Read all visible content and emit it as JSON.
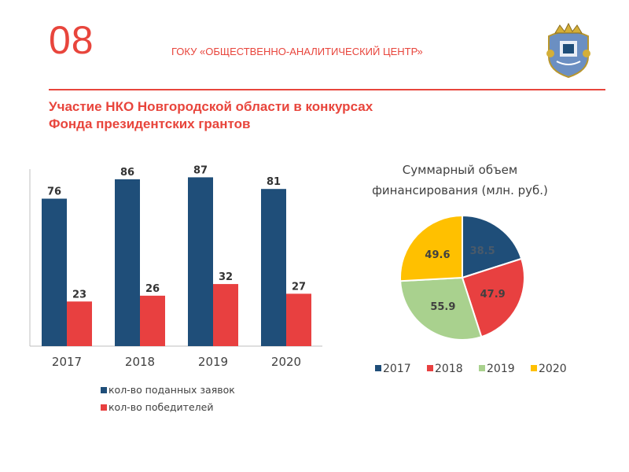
{
  "header": {
    "slide_number": "08",
    "organization": "ГОКУ «ОБЩЕСТВЕННО-АНАЛИТИЧЕСКИЙ ЦЕНТР»",
    "title_line1": "Участие НКО Новгородской области в конкурсах",
    "title_line2": "Фонда президентских грантов"
  },
  "colors": {
    "accent": "#e8453c",
    "navy": "#1f4e79",
    "red": "#e84040",
    "green": "#a9d18e",
    "yellow": "#ffc000"
  },
  "chart_data": [
    {
      "type": "bar",
      "categories": [
        "2017",
        "2018",
        "2019",
        "2020"
      ],
      "series": [
        {
          "name": "кол-во поданных заявок",
          "values": [
            76,
            86,
            87,
            81
          ]
        },
        {
          "name": "кол-во победителей",
          "values": [
            23,
            26,
            32,
            27
          ]
        }
      ],
      "ylim": [
        0,
        90
      ],
      "legend": "bottom"
    },
    {
      "type": "pie",
      "title_line1": "Суммарный объем",
      "title_line2": "финансирования (млн. руб.)",
      "labels": [
        "2017",
        "2018",
        "2019",
        "2020"
      ],
      "values": [
        38.5,
        47.9,
        55.9,
        49.6
      ],
      "value_labels": [
        "38.5",
        "47.9",
        "55.9",
        "49.6"
      ],
      "legend": "bottom"
    }
  ]
}
